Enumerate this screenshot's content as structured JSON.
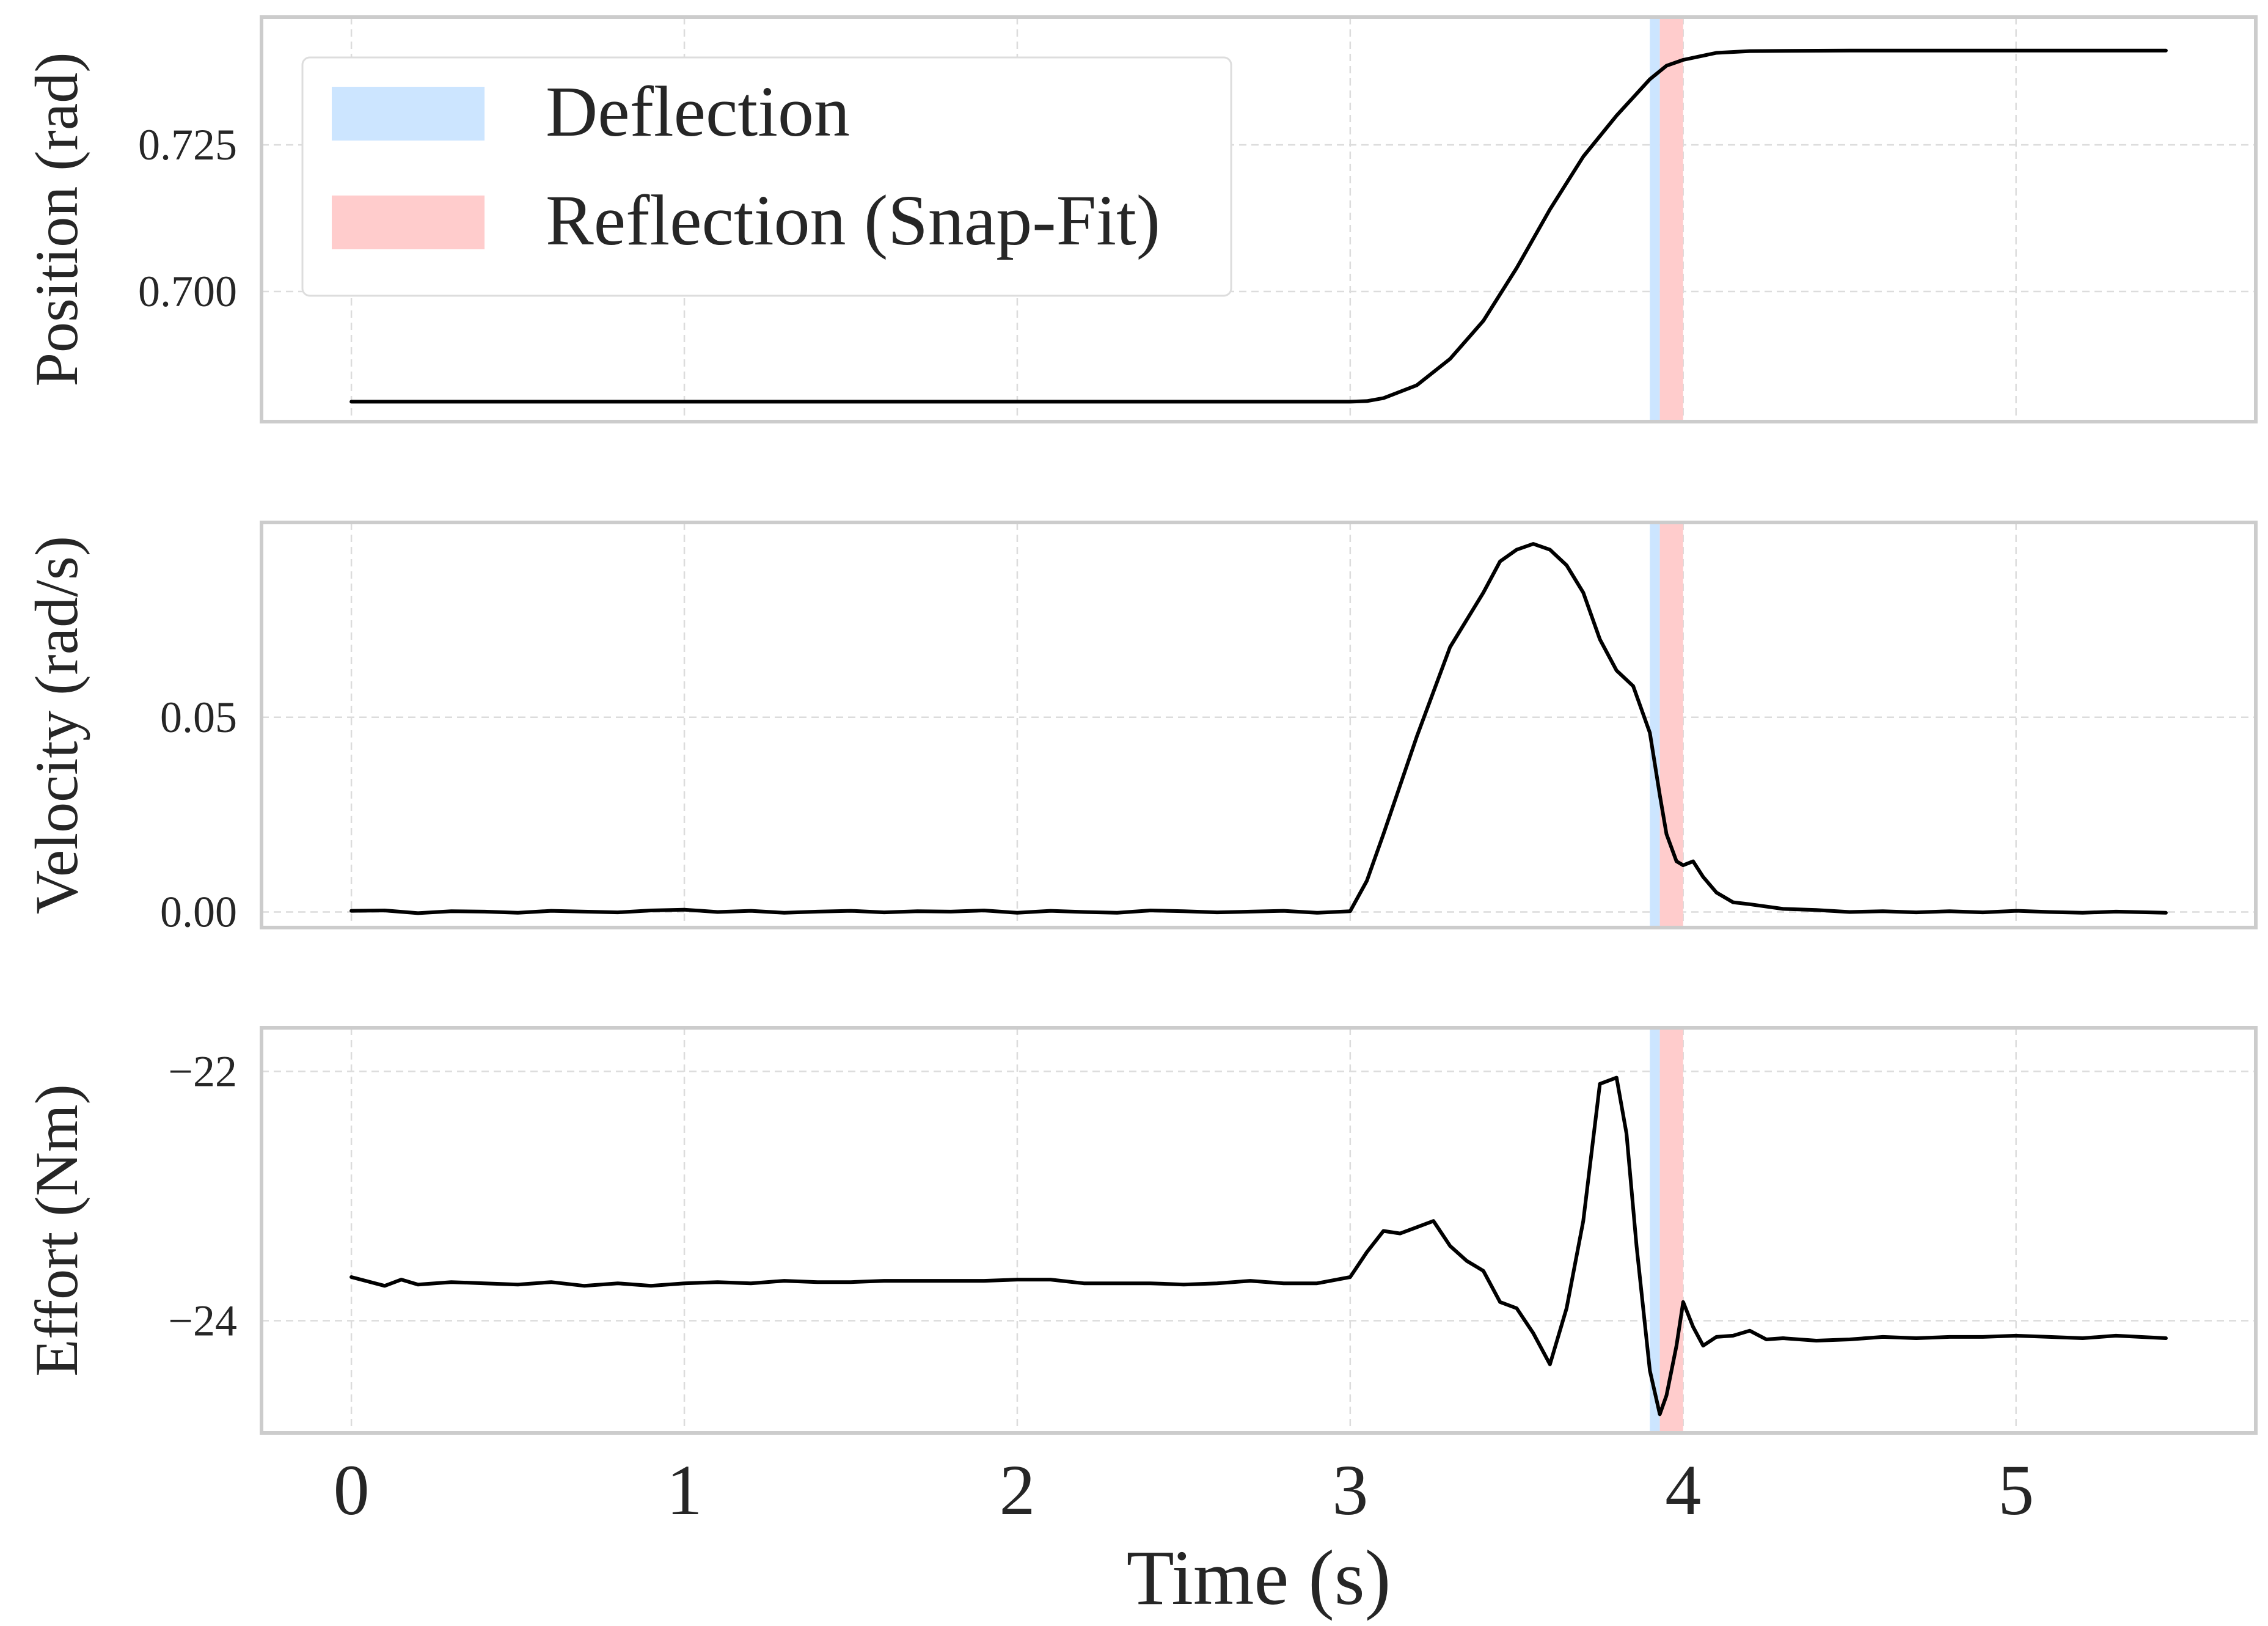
{
  "figure": {
    "xlabel": "Time (s)",
    "x_range": [
      -0.27,
      5.72
    ],
    "x_ticks": [
      0,
      1,
      2,
      3,
      4,
      5
    ],
    "x_tick_labels": [
      "0",
      "1",
      "2",
      "3",
      "4",
      "5"
    ]
  },
  "legend": {
    "items": [
      {
        "label": "Deflection",
        "color": "#cce5ff"
      },
      {
        "label": "Reflection (Snap-Fit)",
        "color": "#ffcccc"
      }
    ]
  },
  "regions": {
    "deflection": {
      "start": 3.9,
      "end": 3.93,
      "color": "#cce5ff"
    },
    "reflection": {
      "start": 3.93,
      "end": 4.0,
      "color": "#ffcccc"
    }
  },
  "chart_data": [
    {
      "type": "line",
      "ylabel": "Position (rad)",
      "ylim": [
        0.6778,
        0.7468
      ],
      "y_ticks": [
        0.7,
        0.725
      ],
      "y_tick_labels": [
        "0.700",
        "0.725"
      ],
      "x": [
        0,
        1,
        2,
        3.0,
        3.05,
        3.1,
        3.2,
        3.3,
        3.4,
        3.5,
        3.6,
        3.7,
        3.8,
        3.9,
        3.95,
        4.0,
        4.1,
        4.2,
        4.5,
        5.0,
        5.45
      ],
      "y": [
        0.6812,
        0.6812,
        0.6812,
        0.6812,
        0.6813,
        0.6818,
        0.684,
        0.6885,
        0.695,
        0.704,
        0.714,
        0.723,
        0.73,
        0.7362,
        0.7385,
        0.7395,
        0.7407,
        0.741,
        0.7411,
        0.7411,
        0.7411
      ],
      "color": "#000000"
    },
    {
      "type": "line",
      "ylabel": "Velocity (rad/s)",
      "ylim": [
        -0.004,
        0.1
      ],
      "y_ticks": [
        0.0,
        0.05
      ],
      "y_tick_labels": [
        "0.00",
        "0.05"
      ],
      "x": [
        0,
        0.1,
        0.2,
        0.3,
        0.4,
        0.5,
        0.6,
        0.7,
        0.8,
        0.9,
        1.0,
        1.1,
        1.2,
        1.3,
        1.4,
        1.5,
        1.6,
        1.7,
        1.8,
        1.9,
        2.0,
        2.1,
        2.2,
        2.3,
        2.4,
        2.5,
        2.6,
        2.7,
        2.8,
        2.9,
        3.0,
        3.05,
        3.1,
        3.2,
        3.3,
        3.4,
        3.45,
        3.5,
        3.55,
        3.6,
        3.65,
        3.7,
        3.75,
        3.8,
        3.85,
        3.9,
        3.93,
        3.95,
        3.98,
        4.0,
        4.03,
        4.06,
        4.1,
        4.15,
        4.2,
        4.3,
        4.4,
        4.5,
        4.6,
        4.7,
        4.8,
        4.9,
        5.0,
        5.1,
        5.2,
        5.3,
        5.45
      ],
      "y": [
        0.0003,
        0.0004,
        -0.0003,
        0.0002,
        0.0001,
        -0.0002,
        0.0003,
        0.0001,
        -0.0001,
        0.0004,
        0.0006,
        0.0,
        0.0003,
        -0.0002,
        0.0001,
        0.0003,
        -0.0001,
        0.0002,
        0.0001,
        0.0004,
        -0.0002,
        0.0003,
        0.0,
        -0.0002,
        0.0004,
        0.0002,
        -0.0001,
        0.0001,
        0.0003,
        -0.0002,
        0.0002,
        0.008,
        0.02,
        0.045,
        0.068,
        0.082,
        0.09,
        0.093,
        0.0945,
        0.093,
        0.089,
        0.082,
        0.07,
        0.062,
        0.058,
        0.046,
        0.03,
        0.02,
        0.013,
        0.012,
        0.013,
        0.009,
        0.005,
        0.0025,
        0.002,
        0.0008,
        0.0005,
        0.0,
        0.0002,
        -0.0001,
        0.0002,
        -0.0001,
        0.0003,
        0.0,
        -0.0002,
        0.0001,
        -0.0002
      ],
      "color": "#000000"
    },
    {
      "type": "line",
      "ylabel": "Effort (Nm)",
      "ylim": [
        -24.9,
        -21.65
      ],
      "y_ticks": [
        -24,
        -22
      ],
      "y_tick_labels": [
        "−24",
        "−22"
      ],
      "x": [
        0,
        0.1,
        0.15,
        0.2,
        0.3,
        0.4,
        0.5,
        0.6,
        0.7,
        0.8,
        0.9,
        1.0,
        1.1,
        1.2,
        1.3,
        1.4,
        1.5,
        1.6,
        1.7,
        1.8,
        1.9,
        2.0,
        2.1,
        2.2,
        2.3,
        2.4,
        2.5,
        2.6,
        2.7,
        2.8,
        2.9,
        3.0,
        3.05,
        3.1,
        3.15,
        3.2,
        3.25,
        3.3,
        3.35,
        3.4,
        3.45,
        3.5,
        3.55,
        3.6,
        3.65,
        3.7,
        3.75,
        3.8,
        3.83,
        3.86,
        3.9,
        3.93,
        3.95,
        3.98,
        4.0,
        4.03,
        4.06,
        4.1,
        4.15,
        4.2,
        4.25,
        4.3,
        4.4,
        4.5,
        4.6,
        4.7,
        4.8,
        4.9,
        5.0,
        5.1,
        5.2,
        5.3,
        5.45
      ],
      "y": [
        -23.65,
        -23.72,
        -23.67,
        -23.71,
        -23.69,
        -23.7,
        -23.71,
        -23.69,
        -23.72,
        -23.7,
        -23.72,
        -23.7,
        -23.69,
        -23.7,
        -23.68,
        -23.69,
        -23.69,
        -23.68,
        -23.68,
        -23.68,
        -23.68,
        -23.67,
        -23.67,
        -23.7,
        -23.7,
        -23.7,
        -23.71,
        -23.7,
        -23.68,
        -23.7,
        -23.7,
        -23.65,
        -23.45,
        -23.28,
        -23.3,
        -23.25,
        -23.2,
        -23.4,
        -23.52,
        -23.6,
        -23.85,
        -23.9,
        -24.1,
        -24.35,
        -23.9,
        -23.2,
        -22.1,
        -22.05,
        -22.5,
        -23.4,
        -24.4,
        -24.75,
        -24.6,
        -24.2,
        -23.85,
        -24.05,
        -24.2,
        -24.13,
        -24.12,
        -24.08,
        -24.15,
        -24.14,
        -24.16,
        -24.15,
        -24.13,
        -24.14,
        -24.13,
        -24.13,
        -24.12,
        -24.13,
        -24.14,
        -24.12,
        -24.14
      ],
      "color": "#000000"
    }
  ]
}
